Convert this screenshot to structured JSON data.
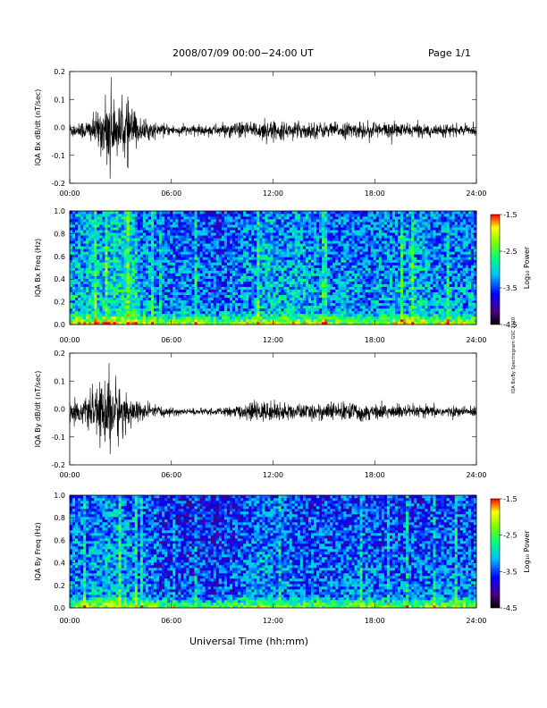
{
  "header": {
    "title": "2008/07/09  00:00−24:00 UT",
    "page": "Page 1/1"
  },
  "footer": {
    "xlabel": "Universal Time (hh:mm)",
    "stamp": "IQA Bx/By Spectrogram  GSC 2010"
  },
  "chart_data": [
    {
      "type": "line",
      "title": "",
      "xlabel": "",
      "ylabel": "IQA Bx dB/dt (nT/sec)",
      "x_ticks": [
        "00:00",
        "06:00",
        "12:00",
        "18:00",
        "24:00"
      ],
      "xlim": [
        0,
        24
      ],
      "ylim": [
        -0.2,
        0.2
      ],
      "y_ticks": [
        "-0.2",
        "-0.1",
        "0.0",
        "0.1",
        "0.2"
      ],
      "series": [
        {
          "x": [
            0,
            1,
            1.5,
            2,
            2.2,
            2.4,
            2.6,
            3,
            3.5,
            4,
            5,
            6,
            7,
            8,
            9,
            10,
            11,
            11.5,
            12,
            13,
            14,
            15,
            16,
            17,
            18,
            19,
            20,
            21,
            22,
            23,
            24
          ],
          "amplitude": [
            0.03,
            0.04,
            0.06,
            0.1,
            0.12,
            0.22,
            0.1,
            0.09,
            0.12,
            0.05,
            0.03,
            0.02,
            0.02,
            0.02,
            0.025,
            0.03,
            0.035,
            0.04,
            0.035,
            0.03,
            0.035,
            0.03,
            0.03,
            0.03,
            0.035,
            0.03,
            0.025,
            0.025,
            0.025,
            0.02,
            0.02
          ],
          "offset": -0.01
        }
      ]
    },
    {
      "type": "heatmap",
      "title": "",
      "xlabel": "",
      "ylabel": "IQA Bx Freq (Hz)",
      "x_ticks": [
        "00:00",
        "06:00",
        "12:00",
        "18:00",
        "24:00"
      ],
      "xlim": [
        0,
        24
      ],
      "ylim": [
        0,
        1.0
      ],
      "y_ticks": [
        "0.0",
        "0.2",
        "0.4",
        "0.6",
        "0.8",
        "1.0"
      ],
      "colorbar": {
        "label": "Log₁₀ Power",
        "range": [
          -4.5,
          -1.5
        ],
        "ticks": [
          "-1.5",
          "-2.5",
          "-3.5",
          "-4.5"
        ]
      },
      "activity_by_hour": [
        0.55,
        0.6,
        0.65,
        0.7,
        0.5,
        0.35,
        0.4,
        0.35,
        0.3,
        0.35,
        0.45,
        0.55,
        0.5,
        0.55,
        0.45,
        0.4,
        0.45,
        0.4,
        0.45,
        0.5,
        0.55,
        0.45,
        0.45,
        0.45
      ]
    },
    {
      "type": "line",
      "title": "",
      "xlabel": "",
      "ylabel": "IQA By dB/dt (nT/sec)",
      "x_ticks": [
        "00:00",
        "06:00",
        "12:00",
        "18:00",
        "24:00"
      ],
      "xlim": [
        0,
        24
      ],
      "ylim": [
        -0.2,
        0.2
      ],
      "y_ticks": [
        "-0.2",
        "-0.1",
        "0.0",
        "0.1",
        "0.2"
      ],
      "series": [
        {
          "x": [
            0,
            1,
            1.5,
            2,
            2.2,
            2.4,
            2.6,
            3,
            3.5,
            4,
            5,
            6,
            7,
            8,
            9,
            10,
            11,
            11.5,
            12,
            13,
            14,
            15,
            16,
            17,
            18,
            19,
            20,
            21,
            22,
            23,
            24
          ],
          "amplitude": [
            0.04,
            0.05,
            0.08,
            0.12,
            0.15,
            0.19,
            0.14,
            0.1,
            0.06,
            0.04,
            0.025,
            0.015,
            0.012,
            0.012,
            0.015,
            0.025,
            0.04,
            0.04,
            0.035,
            0.03,
            0.03,
            0.035,
            0.035,
            0.035,
            0.03,
            0.03,
            0.025,
            0.025,
            0.02,
            0.02,
            0.02
          ],
          "offset": -0.01
        }
      ]
    },
    {
      "type": "heatmap",
      "title": "",
      "xlabel": "",
      "ylabel": "IQA By Freq (Hz)",
      "x_ticks": [
        "00:00",
        "06:00",
        "12:00",
        "18:00",
        "24:00"
      ],
      "xlim": [
        0,
        24
      ],
      "ylim": [
        0,
        1.0
      ],
      "y_ticks": [
        "0.0",
        "0.2",
        "0.4",
        "0.6",
        "0.8",
        "1.0"
      ],
      "colorbar": {
        "label": "Log₁₀ Power",
        "range": [
          -4.5,
          -1.5
        ],
        "ticks": [
          "-1.5",
          "-2.5",
          "-3.5",
          "-4.5"
        ]
      },
      "activity_by_hour": [
        0.4,
        0.45,
        0.5,
        0.45,
        0.35,
        0.25,
        0.2,
        0.2,
        0.2,
        0.25,
        0.35,
        0.45,
        0.35,
        0.3,
        0.3,
        0.3,
        0.35,
        0.35,
        0.3,
        0.3,
        0.3,
        0.3,
        0.35,
        0.35
      ]
    }
  ]
}
